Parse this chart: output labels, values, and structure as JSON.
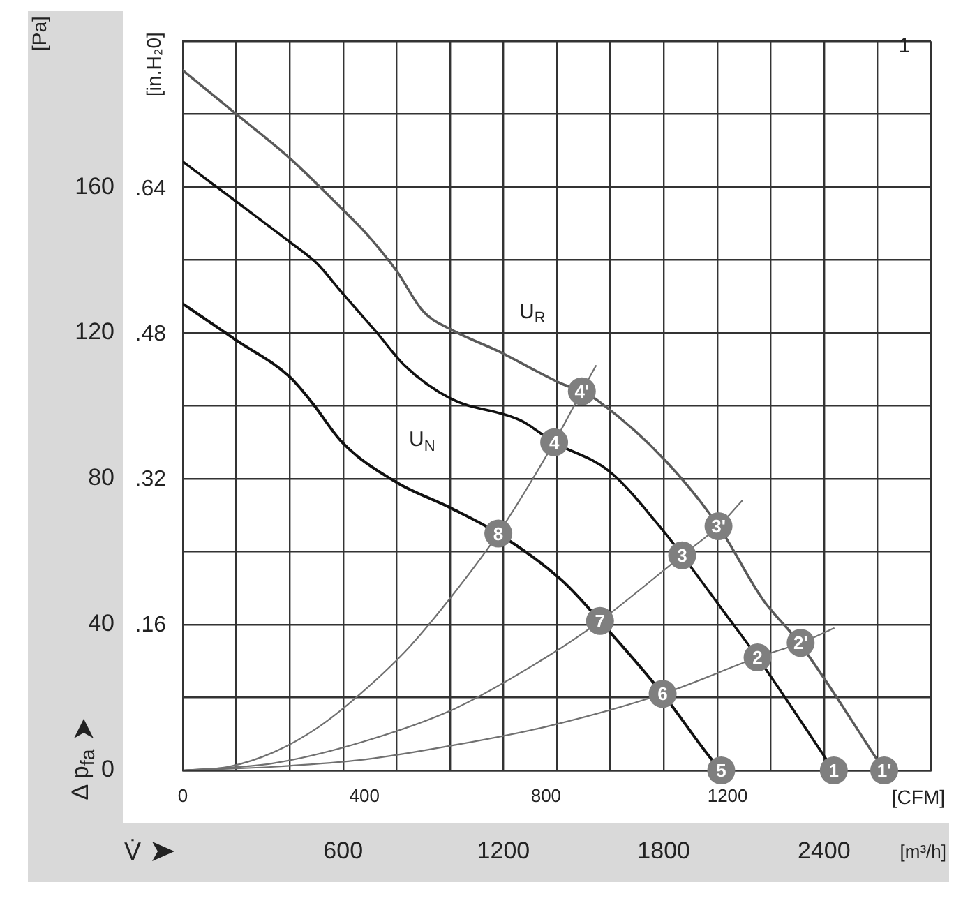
{
  "chart_data": {
    "type": "line",
    "xlabel": "[CFM]",
    "x2label": "[m³/h]",
    "ylabel": "[Pa]",
    "y2label": "[in.H₂0]",
    "xlim": [
      0,
      1648
    ],
    "xticks": [
      0,
      400,
      800,
      1200
    ],
    "x2lim": [
      0,
      2800
    ],
    "x2ticks": [
      {
        "value": 0,
        "label": null
      },
      {
        "value": 200,
        "label": null
      },
      {
        "value": 400,
        "label": null
      },
      600,
      {
        "value": 800,
        "label": null
      },
      {
        "value": 1000,
        "label": null
      },
      1200,
      {
        "value": 1400,
        "label": null
      },
      {
        "value": 1600,
        "label": null
      },
      1800,
      {
        "value": 2000,
        "label": null
      },
      {
        "value": 2200,
        "label": null
      },
      2400,
      {
        "value": 2600,
        "label": null
      },
      {
        "value": 2800,
        "label": null
      }
    ],
    "ylim": [
      0,
      200
    ],
    "yticks": [
      0,
      {
        "value": 20,
        "label": null
      },
      40,
      {
        "value": 60,
        "label": null
      },
      80,
      {
        "value": 100,
        "label": null
      },
      120,
      {
        "value": 140,
        "label": null
      },
      160,
      {
        "value": 180,
        "label": null
      },
      {
        "value": 200,
        "label": null
      }
    ],
    "y2lim": [
      0,
      0.803
    ],
    "y2ticks": [
      {
        "value": 0.16,
        "label": ".16"
      },
      {
        "value": 0.32,
        "label": ".32"
      },
      {
        "value": 0.48,
        "label": ".48"
      },
      {
        "value": 0.64,
        "label": ".64"
      }
    ],
    "grid": true,
    "legend": false,
    "series": [
      {
        "name": "U$_{R}$",
        "marker": "none",
        "color": "#5a5a5a",
        "x": [
          0,
          118,
          235,
          351,
          406,
          471,
          529,
          590,
          695,
          836,
          879,
          919,
          1063,
          1180,
          1277,
          1358,
          1545
        ],
        "values": [
          192,
          180,
          168,
          154,
          147,
          137,
          126,
          121,
          115,
          106,
          104,
          101,
          85,
          67,
          47,
          35,
          0
        ]
      },
      {
        "name": "U$_{N}$",
        "marker": "none",
        "color": "#111111",
        "x": [
          0,
          118,
          235,
          296,
          351,
          428,
          489,
          590,
          744,
          818,
          940,
          1063,
          1100,
          1195,
          1266,
          1434
        ],
        "values": [
          167,
          156,
          145,
          139,
          131,
          120,
          111,
          102,
          96,
          90,
          82,
          65,
          59,
          43,
          31,
          0
        ]
      },
      {
        "marker": "none",
        "color": "#111111",
        "x": [
          0,
          118,
          235,
          284,
          351,
          471,
          590,
          695,
          836,
          919,
          1057,
          1165,
          1186
        ],
        "values": [
          128,
          118,
          108,
          101,
          90,
          79,
          72,
          65,
          52,
          41,
          21,
          3,
          0
        ]
      },
      {
        "marker": "none",
        "color": "#707070",
        "x": [
          0,
          100,
          200,
          300,
          400,
          500,
          600,
          695,
          818,
          879,
          910
        ],
        "values": [
          0,
          1,
          5,
          12,
          22,
          34,
          49,
          65,
          90,
          104,
          111
        ]
      },
      {
        "marker": "none",
        "color": "#707070",
        "x": [
          0,
          200,
          400,
          600,
          800,
          919,
          1100,
          1180,
          1232
        ],
        "values": [
          0,
          2,
          8,
          17,
          31,
          41,
          59,
          67,
          74
        ]
      },
      {
        "marker": "none",
        "color": "#707070",
        "x": [
          0,
          200,
          400,
          600,
          800,
          1057,
          1266,
          1361,
          1434
        ],
        "values": [
          0,
          1,
          3,
          7,
          12,
          21,
          31,
          35,
          39
        ]
      },
      {
        "type": "scatter",
        "marker": "circle",
        "color": "#7f7f7f",
        "x": [
          1434,
          1545,
          1266,
          1361,
          1100,
          1180,
          818,
          879,
          1186,
          1057,
          919,
          695
        ],
        "values": [
          0,
          0,
          31,
          35,
          59,
          67,
          90,
          104,
          0,
          21,
          41,
          65
        ]
      }
    ],
    "annotations": [
      "Δ p$_{fa}$",
      "V̇",
      "1",
      {
        "text": "1",
        "x": 1434,
        "y": 0
      },
      {
        "text": "1'",
        "x": 1545,
        "y": 0
      },
      {
        "text": "2",
        "x": 1266,
        "y": 31
      },
      {
        "text": "2'",
        "x": 1361,
        "y": 35
      },
      {
        "text": "3",
        "x": 1100,
        "y": 59
      },
      {
        "text": "3'",
        "x": 1180,
        "y": 67
      },
      {
        "text": "4",
        "x": 818,
        "y": 90
      },
      {
        "text": "4'",
        "x": 879,
        "y": 104
      },
      {
        "text": "5",
        "x": 1186,
        "y": 0
      },
      {
        "text": "6",
        "x": 1057,
        "y": 21
      },
      {
        "text": "7",
        "x": 919,
        "y": 41
      },
      {
        "text": "8",
        "x": 695,
        "y": 65
      }
    ]
  }
}
